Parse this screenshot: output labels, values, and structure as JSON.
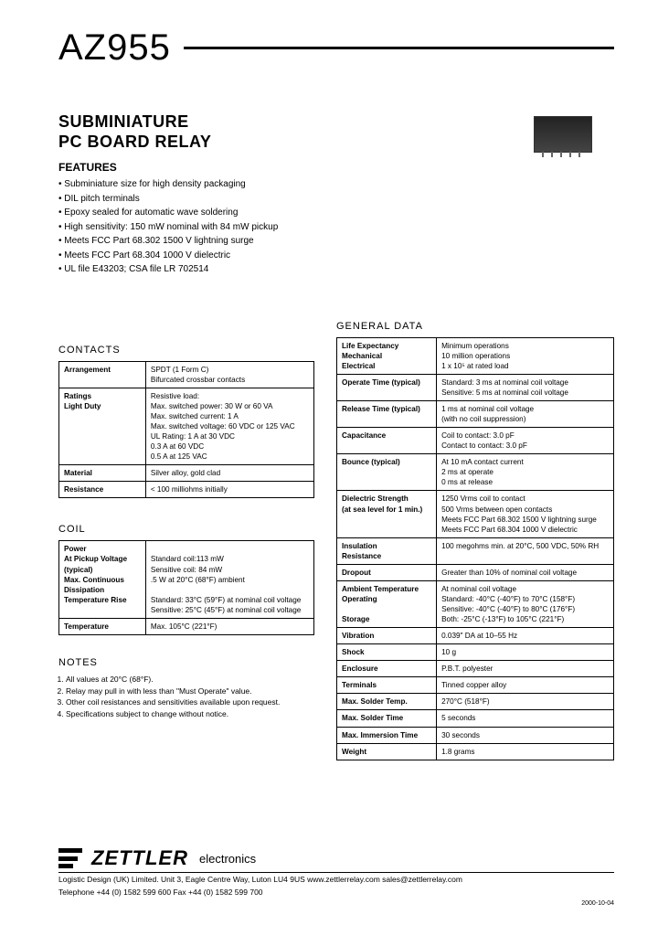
{
  "part_number": "AZ955",
  "title_line1": "SUBMINIATURE",
  "title_line2": "PC BOARD RELAY",
  "features_header": "FEATURES",
  "features": [
    "Subminiature size for high density packaging",
    "DIL pitch terminals",
    "Epoxy sealed for automatic wave soldering",
    "High sensitivity: 150 mW nominal with 84 mW pickup",
    "Meets FCC Part 68.302 1500 V lightning surge",
    "Meets FCC Part 68.304 1000 V dielectric",
    "UL file E43203; CSA file LR 702514"
  ],
  "contacts": {
    "header": "CONTACTS",
    "rows": [
      {
        "label": "Arrangement",
        "value": "SPDT (1 Form C)\nBifurcated crossbar contacts"
      },
      {
        "label": "Ratings\n  Light Duty",
        "value": "Resistive load:\nMax. switched power:   30 W or 60 VA\nMax. switched current:  1 A\nMax. switched voltage:  60 VDC or 125 VAC\nUL Rating: 1 A at 30 VDC\n                0.3 A at 60 VDC\n                0.5 A at 125 VAC"
      },
      {
        "label": "Material",
        "value": "Silver alloy, gold clad"
      },
      {
        "label": "Resistance",
        "value": "< 100 milliohms initially"
      }
    ]
  },
  "coil": {
    "header": "COIL",
    "rows": [
      {
        "label": "Power\n  At Pickup Voltage\n    (typical)\n  Max. Continuous\n    Dissipation\n  Temperature Rise",
        "value": "\nStandard coil:113 mW\nSensitive coil: 84 mW\n.5 W at 20°C (68°F) ambient\n\nStandard: 33°C (59°F) at nominal coil voltage\nSensitive: 25°C (45°F) at nominal coil voltage"
      },
      {
        "label": "Temperature",
        "value": "Max. 105°C (221°F)"
      }
    ]
  },
  "notes": {
    "header": "NOTES",
    "items": [
      "All values at 20°C (68°F).",
      "Relay may pull in with less than \"Must Operate\" value.",
      "Other coil resistances and sensitivities available upon request.",
      "Specifications subject to change without notice."
    ]
  },
  "general": {
    "header": "GENERAL DATA",
    "rows": [
      {
        "label": "Life Expectancy\n     Mechanical\n     Electrical",
        "value": "Minimum operations\n10 million operations\n1 x 10⁵ at rated load"
      },
      {
        "label": "Operate Time (typical)",
        "value": "Standard: 3 ms at nominal coil voltage\nSensitive: 5 ms at nominal coil voltage"
      },
      {
        "label": "Release Time (typical)",
        "value": "1 ms at nominal coil voltage\n(with no coil suppression)"
      },
      {
        "label": "Capacitance",
        "value": "Coil to contact: 3.0 pF\nContact to contact: 3.0 pF"
      },
      {
        "label": "Bounce (typical)",
        "value": "At 10 mA contact current\n2 ms at operate\n0 ms at release"
      },
      {
        "label": "Dielectric Strength\n(at sea level for 1 min.)",
        "value": "1250 Vrms coil to contact\n500 Vrms between open contacts\nMeets FCC Part 68.302 1500 V lightning surge\nMeets FCC Part 68.304 1000 V dielectric"
      },
      {
        "label": "Insulation\nResistance",
        "value": "100 megohms min. at 20°C, 500 VDC, 50% RH"
      },
      {
        "label": "Dropout",
        "value": "Greater than 10% of nominal coil voltage"
      },
      {
        "label": "Ambient Temperature\n     Operating\n\n     Storage",
        "value": "At nominal coil voltage\nStandard: -40°C (-40°F) to 70°C (158°F)\nSensitive: -40°C (-40°F) to 80°C (176°F)\nBoth: -25°C (-13°F) to 105°C (221°F)"
      },
      {
        "label": "Vibration",
        "value": "0.039\" DA at 10–55 Hz"
      },
      {
        "label": "Shock",
        "value": "10 g"
      },
      {
        "label": "Enclosure",
        "value": "P.B.T. polyester"
      },
      {
        "label": "Terminals",
        "value": "Tinned copper alloy"
      },
      {
        "label": "Max. Solder Temp.",
        "value": "270°C (518°F)"
      },
      {
        "label": "Max. Solder Time",
        "value": "5 seconds"
      },
      {
        "label": "Max. Immersion Time",
        "value": "30 seconds"
      },
      {
        "label": "Weight",
        "value": "1.8 grams"
      }
    ]
  },
  "footer": {
    "brand": "ZETTLER",
    "brand_sub": "electronics",
    "line1": "Logistic Design (UK) Limited. Unit 3, Eagle Centre Way, Luton LU4 9US   www.zettlerrelay.com  sales@zettlerrelay.com",
    "line2": "Telephone +44 (0) 1582 599 600  Fax +44 (0) 1582 599 700",
    "date": "2000-10-04"
  },
  "colors": {
    "text": "#000000",
    "page_bg": "#ffffff",
    "outer_bg": "#888888",
    "rule": "#000000"
  }
}
